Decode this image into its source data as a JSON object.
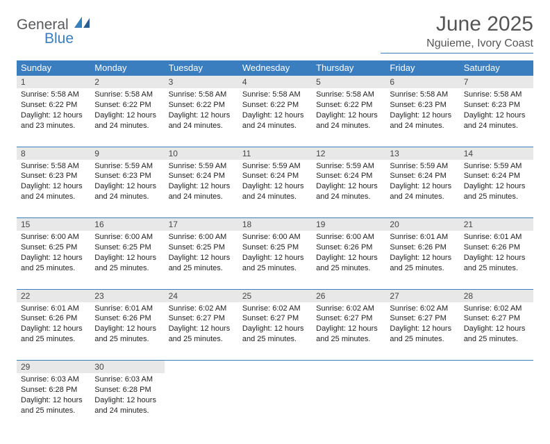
{
  "logo": {
    "text1": "General",
    "text2": "Blue"
  },
  "colors": {
    "accent": "#3b7ec0",
    "header_bg": "#3b7ec0",
    "daynum_bg": "#e8e8e8"
  },
  "title": "June 2025",
  "location": "Nguieme, Ivory Coast",
  "day_headers": [
    "Sunday",
    "Monday",
    "Tuesday",
    "Wednesday",
    "Thursday",
    "Friday",
    "Saturday"
  ],
  "labels": {
    "sunrise": "Sunrise: ",
    "sunset": "Sunset: ",
    "daylight": "Daylight: "
  },
  "weeks": [
    [
      {
        "n": "1",
        "sunrise": "5:58 AM",
        "sunset": "6:22 PM",
        "daylight": "12 hours and 23 minutes."
      },
      {
        "n": "2",
        "sunrise": "5:58 AM",
        "sunset": "6:22 PM",
        "daylight": "12 hours and 24 minutes."
      },
      {
        "n": "3",
        "sunrise": "5:58 AM",
        "sunset": "6:22 PM",
        "daylight": "12 hours and 24 minutes."
      },
      {
        "n": "4",
        "sunrise": "5:58 AM",
        "sunset": "6:22 PM",
        "daylight": "12 hours and 24 minutes."
      },
      {
        "n": "5",
        "sunrise": "5:58 AM",
        "sunset": "6:22 PM",
        "daylight": "12 hours and 24 minutes."
      },
      {
        "n": "6",
        "sunrise": "5:58 AM",
        "sunset": "6:23 PM",
        "daylight": "12 hours and 24 minutes."
      },
      {
        "n": "7",
        "sunrise": "5:58 AM",
        "sunset": "6:23 PM",
        "daylight": "12 hours and 24 minutes."
      }
    ],
    [
      {
        "n": "8",
        "sunrise": "5:58 AM",
        "sunset": "6:23 PM",
        "daylight": "12 hours and 24 minutes."
      },
      {
        "n": "9",
        "sunrise": "5:59 AM",
        "sunset": "6:23 PM",
        "daylight": "12 hours and 24 minutes."
      },
      {
        "n": "10",
        "sunrise": "5:59 AM",
        "sunset": "6:24 PM",
        "daylight": "12 hours and 24 minutes."
      },
      {
        "n": "11",
        "sunrise": "5:59 AM",
        "sunset": "6:24 PM",
        "daylight": "12 hours and 24 minutes."
      },
      {
        "n": "12",
        "sunrise": "5:59 AM",
        "sunset": "6:24 PM",
        "daylight": "12 hours and 24 minutes."
      },
      {
        "n": "13",
        "sunrise": "5:59 AM",
        "sunset": "6:24 PM",
        "daylight": "12 hours and 24 minutes."
      },
      {
        "n": "14",
        "sunrise": "5:59 AM",
        "sunset": "6:24 PM",
        "daylight": "12 hours and 25 minutes."
      }
    ],
    [
      {
        "n": "15",
        "sunrise": "6:00 AM",
        "sunset": "6:25 PM",
        "daylight": "12 hours and 25 minutes."
      },
      {
        "n": "16",
        "sunrise": "6:00 AM",
        "sunset": "6:25 PM",
        "daylight": "12 hours and 25 minutes."
      },
      {
        "n": "17",
        "sunrise": "6:00 AM",
        "sunset": "6:25 PM",
        "daylight": "12 hours and 25 minutes."
      },
      {
        "n": "18",
        "sunrise": "6:00 AM",
        "sunset": "6:25 PM",
        "daylight": "12 hours and 25 minutes."
      },
      {
        "n": "19",
        "sunrise": "6:00 AM",
        "sunset": "6:26 PM",
        "daylight": "12 hours and 25 minutes."
      },
      {
        "n": "20",
        "sunrise": "6:01 AM",
        "sunset": "6:26 PM",
        "daylight": "12 hours and 25 minutes."
      },
      {
        "n": "21",
        "sunrise": "6:01 AM",
        "sunset": "6:26 PM",
        "daylight": "12 hours and 25 minutes."
      }
    ],
    [
      {
        "n": "22",
        "sunrise": "6:01 AM",
        "sunset": "6:26 PM",
        "daylight": "12 hours and 25 minutes."
      },
      {
        "n": "23",
        "sunrise": "6:01 AM",
        "sunset": "6:26 PM",
        "daylight": "12 hours and 25 minutes."
      },
      {
        "n": "24",
        "sunrise": "6:02 AM",
        "sunset": "6:27 PM",
        "daylight": "12 hours and 25 minutes."
      },
      {
        "n": "25",
        "sunrise": "6:02 AM",
        "sunset": "6:27 PM",
        "daylight": "12 hours and 25 minutes."
      },
      {
        "n": "26",
        "sunrise": "6:02 AM",
        "sunset": "6:27 PM",
        "daylight": "12 hours and 25 minutes."
      },
      {
        "n": "27",
        "sunrise": "6:02 AM",
        "sunset": "6:27 PM",
        "daylight": "12 hours and 25 minutes."
      },
      {
        "n": "28",
        "sunrise": "6:02 AM",
        "sunset": "6:27 PM",
        "daylight": "12 hours and 25 minutes."
      }
    ],
    [
      {
        "n": "29",
        "sunrise": "6:03 AM",
        "sunset": "6:28 PM",
        "daylight": "12 hours and 25 minutes."
      },
      {
        "n": "30",
        "sunrise": "6:03 AM",
        "sunset": "6:28 PM",
        "daylight": "12 hours and 24 minutes."
      },
      null,
      null,
      null,
      null,
      null
    ]
  ]
}
